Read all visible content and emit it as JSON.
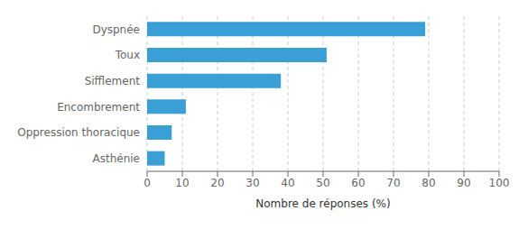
{
  "chart_data": {
    "type": "bar",
    "orientation": "horizontal",
    "categories": [
      "Dyspnée",
      "Toux",
      "Sifflement",
      "Encombrement",
      "Oppression thoracique",
      "Asthénie"
    ],
    "values": [
      79,
      51,
      38,
      11,
      7,
      5
    ],
    "color": "#3A9FD5",
    "xlabel": "Nombre de réponses (%)",
    "xlim": [
      0,
      100
    ],
    "xticks": [
      0,
      10,
      20,
      30,
      40,
      50,
      60,
      70,
      80,
      90,
      100
    ],
    "grid": true
  }
}
